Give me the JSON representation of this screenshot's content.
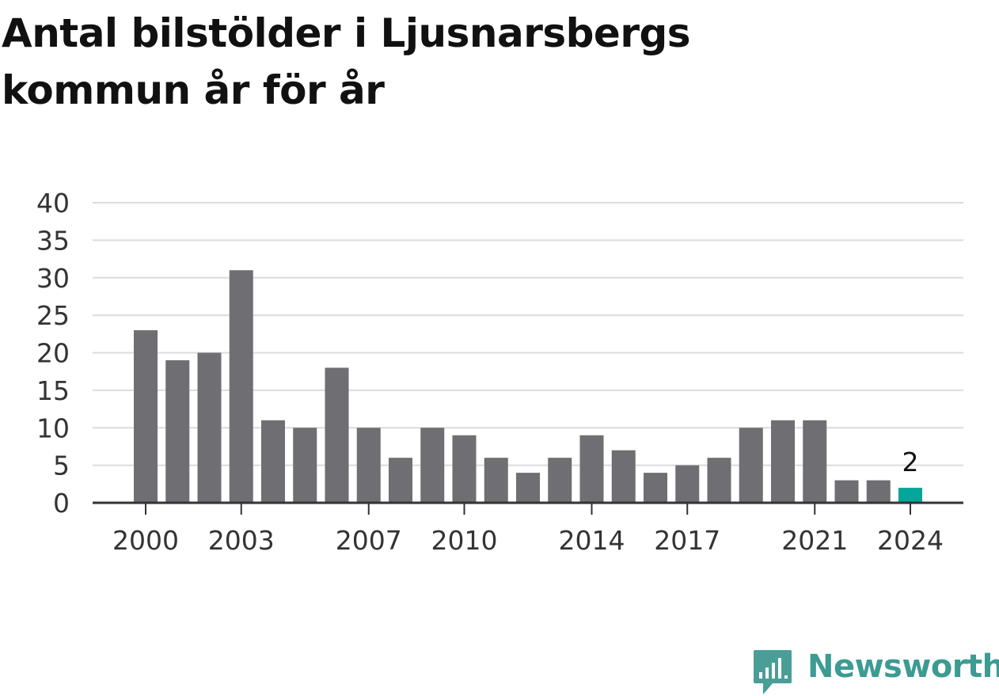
{
  "title": "Antal bilstölder i Ljusnarsbergs kommun år för år",
  "brand": {
    "name": "Newsworthy",
    "icon": "newsworthy-logo-icon"
  },
  "colors": {
    "bar": "#6e6e73",
    "highlight": "#05a69a",
    "grid": "#dcdcdc",
    "axis": "#333333",
    "brand": "#3c9b93"
  },
  "chart_data": {
    "type": "bar",
    "title": "Antal bilstölder i Ljusnarsbergs kommun år för år",
    "xlabel": "",
    "ylabel": "",
    "categories": [
      "2000",
      "2001",
      "2002",
      "2003",
      "2004",
      "2005",
      "2006",
      "2007",
      "2008",
      "2009",
      "2010",
      "2011",
      "2012",
      "2013",
      "2014",
      "2015",
      "2016",
      "2017",
      "2018",
      "2019",
      "2020",
      "2021",
      "2022",
      "2023",
      "2024"
    ],
    "values": [
      23,
      19,
      20,
      31,
      11,
      10,
      18,
      10,
      6,
      10,
      9,
      6,
      4,
      6,
      9,
      7,
      4,
      5,
      6,
      10,
      11,
      11,
      3,
      3,
      2
    ],
    "x_tick_labels": [
      "2000",
      "2003",
      "2007",
      "2010",
      "2014",
      "2017",
      "2021",
      "2024"
    ],
    "y_ticks": [
      0,
      5,
      10,
      15,
      20,
      25,
      30,
      35,
      40
    ],
    "ylim": [
      0,
      40
    ],
    "grid": true,
    "highlight": {
      "category": "2024",
      "label": "2"
    }
  }
}
